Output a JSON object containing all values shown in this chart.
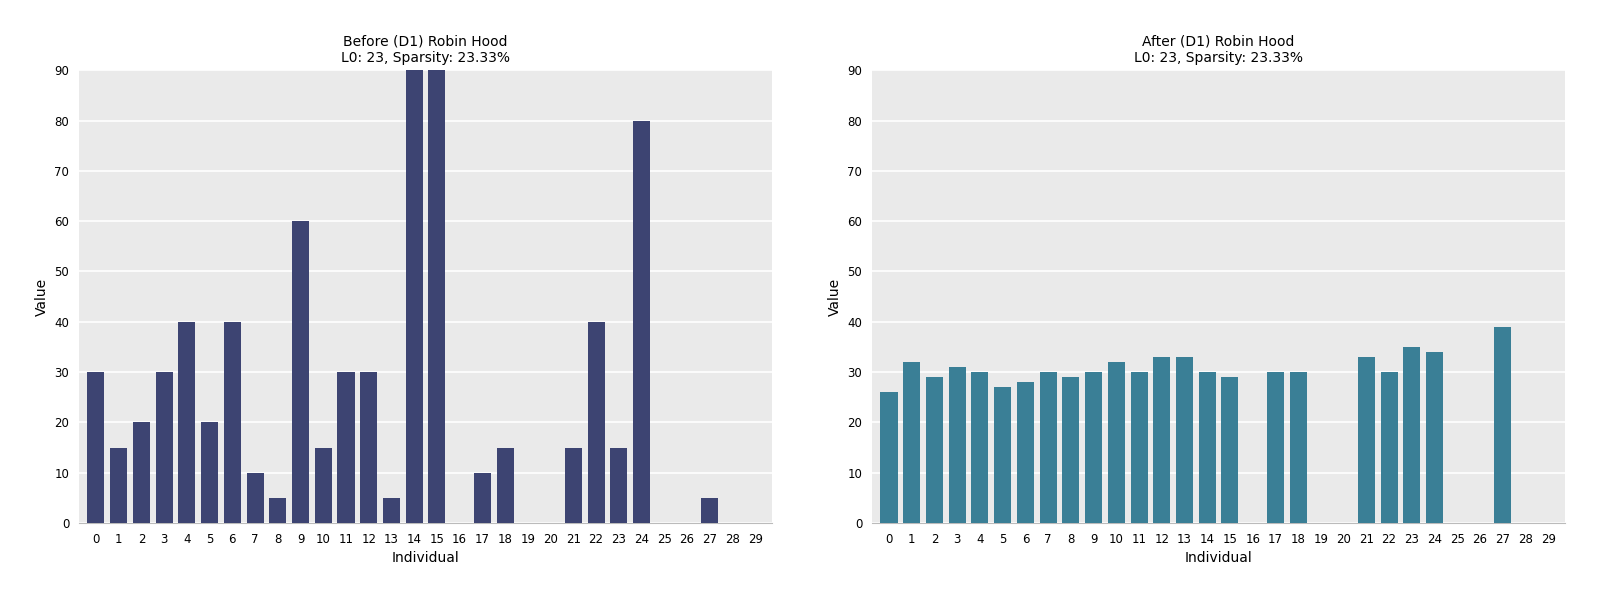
{
  "before_values": [
    30,
    15,
    20,
    30,
    40,
    20,
    40,
    10,
    5,
    60,
    15,
    30,
    30,
    5,
    90,
    90,
    0,
    10,
    15,
    0,
    0,
    15,
    40,
    15,
    80,
    0,
    0,
    5,
    0,
    0
  ],
  "after_values": [
    26,
    32,
    29,
    31,
    30,
    27,
    28,
    30,
    29,
    30,
    32,
    30,
    33,
    33,
    30,
    29,
    0,
    30,
    30,
    0,
    0,
    33,
    30,
    35,
    34,
    0,
    0,
    39,
    0,
    0
  ],
  "before_title": "Before (D1) Robin Hood\nL0: 23, Sparsity: 23.33%",
  "after_title": "After (D1) Robin Hood\nL0: 23, Sparsity: 23.33%",
  "xlabel": "Individual",
  "ylabel": "Value",
  "ylim": [
    0,
    90
  ],
  "yticks": [
    0,
    10,
    20,
    30,
    40,
    50,
    60,
    70,
    80,
    90
  ],
  "xticks": [
    0,
    1,
    2,
    3,
    4,
    5,
    6,
    7,
    8,
    9,
    10,
    11,
    12,
    13,
    14,
    15,
    16,
    17,
    18,
    19,
    20,
    21,
    22,
    23,
    24,
    25,
    26,
    27,
    28,
    29
  ],
  "before_bar_color": "#3d4472",
  "after_bar_color": "#3a7f96",
  "background_color": "#eaeaea",
  "grid_color": "#ffffff",
  "fig_bg_color": "#ffffff",
  "title_fontsize": 10,
  "label_fontsize": 10,
  "tick_fontsize": 8.5
}
